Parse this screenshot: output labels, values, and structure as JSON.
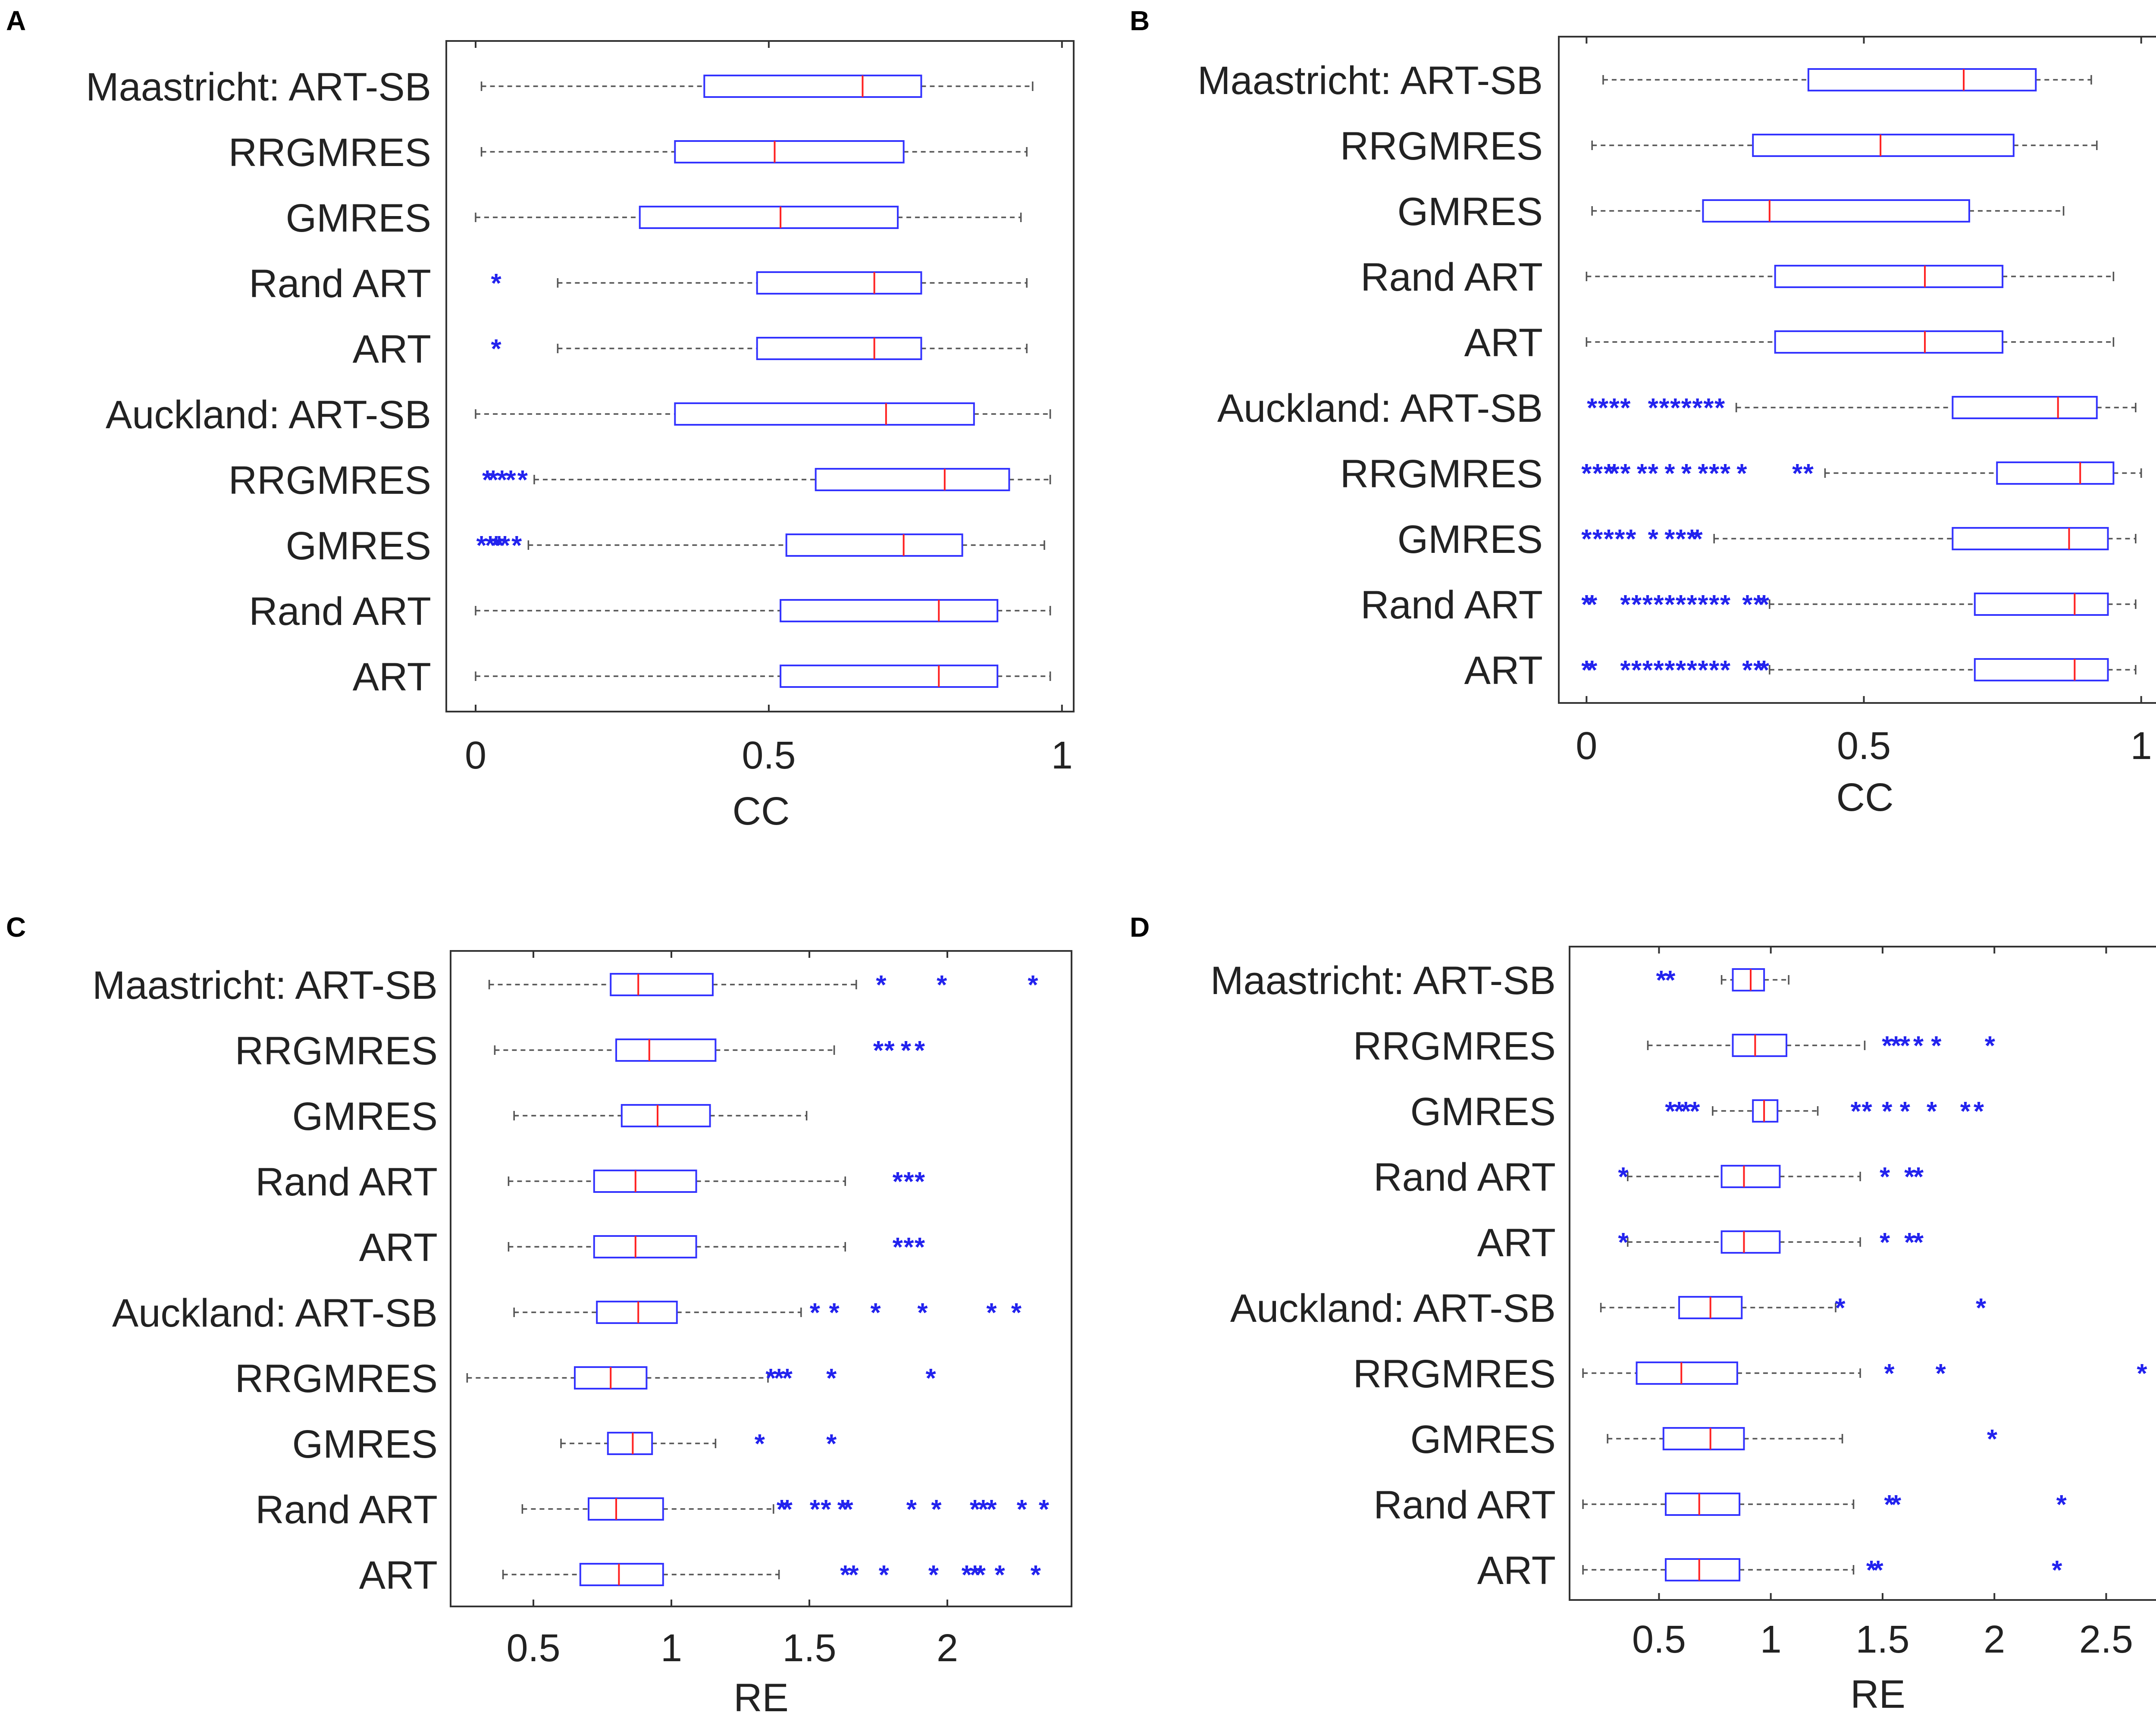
{
  "figure": {
    "panels": [
      {
        "letter": "A",
        "xlim": [
          -0.05,
          1.02
        ],
        "xticks": [
          0,
          0.5,
          1
        ],
        "tick_labels": [
          "0",
          "0.5",
          "1"
        ],
        "xlabel": "CC"
      },
      {
        "letter": "B",
        "xlim": [
          -0.05,
          1.05
        ],
        "xticks": [
          0,
          0.5,
          1
        ],
        "tick_labels": [
          "0",
          "0.5",
          "1"
        ],
        "xlabel": "CC"
      },
      {
        "letter": "C",
        "xlim": [
          0.2,
          2.45
        ],
        "xticks": [
          0.5,
          1,
          1.5,
          2
        ],
        "tick_labels": [
          "0.5",
          "1",
          "1.5",
          "2"
        ],
        "xlabel": "RE"
      },
      {
        "letter": "D",
        "xlim": [
          0.1,
          2.8
        ],
        "xticks": [
          0.5,
          1,
          1.5,
          2,
          2.5
        ],
        "tick_labels": [
          "0.5",
          "1",
          "1.5",
          "2",
          "2.5"
        ],
        "xlabel": "RE"
      }
    ]
  },
  "chart_data": [
    {
      "type": "boxplot",
      "panel": "A",
      "orientation": "horizontal",
      "title": "",
      "xlabel": "CC",
      "ylabel": "",
      "xlim": [
        -0.05,
        1.02
      ],
      "categories": [
        "Maastricht: ART-SB",
        "RRGMRES",
        "GMRES",
        "Rand ART",
        "ART",
        "Auckland: ART-SB",
        "RRGMRES",
        "GMRES",
        "Rand ART",
        "ART"
      ],
      "series": [
        {
          "name": "Maastricht: ART-SB",
          "whisker_low": 0.01,
          "q1": 0.39,
          "median": 0.66,
          "q3": 0.76,
          "whisker_high": 0.95,
          "outliers": []
        },
        {
          "name": "RRGMRES",
          "whisker_low": 0.01,
          "q1": 0.34,
          "median": 0.51,
          "q3": 0.73,
          "whisker_high": 0.94,
          "outliers": []
        },
        {
          "name": "GMRES",
          "whisker_low": 0.0,
          "q1": 0.28,
          "median": 0.52,
          "q3": 0.72,
          "whisker_high": 0.93,
          "outliers": []
        },
        {
          "name": "Rand ART",
          "whisker_low": 0.14,
          "q1": 0.48,
          "median": 0.68,
          "q3": 0.76,
          "whisker_high": 0.94,
          "outliers": [
            0.035
          ]
        },
        {
          "name": "ART",
          "whisker_low": 0.14,
          "q1": 0.48,
          "median": 0.68,
          "q3": 0.76,
          "whisker_high": 0.94,
          "outliers": [
            0.035
          ]
        },
        {
          "name": "Auckland: ART-SB",
          "whisker_low": 0.0,
          "q1": 0.34,
          "median": 0.7,
          "q3": 0.85,
          "whisker_high": 0.98,
          "outliers": []
        },
        {
          "name": "RRGMRES",
          "whisker_low": 0.1,
          "q1": 0.58,
          "median": 0.8,
          "q3": 0.91,
          "whisker_high": 0.98,
          "outliers": [
            0.02,
            0.03,
            0.045,
            0.06,
            0.08
          ]
        },
        {
          "name": "GMRES",
          "whisker_low": 0.09,
          "q1": 0.53,
          "median": 0.73,
          "q3": 0.83,
          "whisker_high": 0.97,
          "outliers": [
            0.01,
            0.025,
            0.035,
            0.04,
            0.05,
            0.07
          ]
        },
        {
          "name": "Rand ART",
          "whisker_low": 0.0,
          "q1": 0.52,
          "median": 0.79,
          "q3": 0.89,
          "whisker_high": 0.98,
          "outliers": []
        },
        {
          "name": "ART",
          "whisker_low": 0.0,
          "q1": 0.52,
          "median": 0.79,
          "q3": 0.89,
          "whisker_high": 0.98,
          "outliers": []
        }
      ]
    },
    {
      "type": "boxplot",
      "panel": "B",
      "orientation": "horizontal",
      "title": "",
      "xlabel": "CC",
      "ylabel": "",
      "xlim": [
        -0.05,
        1.05
      ],
      "categories": [
        "Maastricht: ART-SB",
        "RRGMRES",
        "GMRES",
        "Rand ART",
        "ART",
        "Auckland: ART-SB",
        "RRGMRES",
        "GMRES",
        "Rand ART",
        "ART"
      ],
      "series": [
        {
          "name": "Maastricht: ART-SB",
          "whisker_low": 0.03,
          "q1": 0.4,
          "median": 0.68,
          "q3": 0.81,
          "whisker_high": 0.91,
          "outliers": []
        },
        {
          "name": "RRGMRES",
          "whisker_low": 0.01,
          "q1": 0.3,
          "median": 0.53,
          "q3": 0.77,
          "whisker_high": 0.92,
          "outliers": []
        },
        {
          "name": "GMRES",
          "whisker_low": 0.01,
          "q1": 0.21,
          "median": 0.33,
          "q3": 0.69,
          "whisker_high": 0.86,
          "outliers": []
        },
        {
          "name": "Rand ART",
          "whisker_low": 0.0,
          "q1": 0.34,
          "median": 0.61,
          "q3": 0.75,
          "whisker_high": 0.95,
          "outliers": []
        },
        {
          "name": "ART",
          "whisker_low": 0.0,
          "q1": 0.34,
          "median": 0.61,
          "q3": 0.75,
          "whisker_high": 0.95,
          "outliers": []
        },
        {
          "name": "Auckland: ART-SB",
          "whisker_low": 0.27,
          "q1": 0.66,
          "median": 0.85,
          "q3": 0.92,
          "whisker_high": 0.99,
          "outliers": [
            0.01,
            0.03,
            0.05,
            0.07,
            0.12,
            0.14,
            0.16,
            0.18,
            0.2,
            0.22,
            0.24
          ]
        },
        {
          "name": "RRGMRES",
          "whisker_low": 0.43,
          "q1": 0.74,
          "median": 0.89,
          "q3": 0.95,
          "whisker_high": 1.0,
          "outliers": [
            0.0,
            0.02,
            0.04,
            0.05,
            0.07,
            0.1,
            0.12,
            0.15,
            0.18,
            0.21,
            0.23,
            0.25,
            0.28,
            0.38,
            0.4
          ]
        },
        {
          "name": "GMRES",
          "whisker_low": 0.23,
          "q1": 0.66,
          "median": 0.87,
          "q3": 0.94,
          "whisker_high": 0.99,
          "outliers": [
            0.0,
            0.02,
            0.04,
            0.06,
            0.08,
            0.12,
            0.15,
            0.17,
            0.19,
            0.2
          ]
        },
        {
          "name": "Rand ART",
          "whisker_low": 0.33,
          "q1": 0.7,
          "median": 0.88,
          "q3": 0.94,
          "whisker_high": 0.99,
          "outliers": [
            0.0,
            0.01,
            0.07,
            0.09,
            0.11,
            0.13,
            0.15,
            0.17,
            0.19,
            0.21,
            0.23,
            0.25,
            0.29,
            0.31,
            0.32
          ]
        },
        {
          "name": "ART",
          "whisker_low": 0.33,
          "q1": 0.7,
          "median": 0.88,
          "q3": 0.94,
          "whisker_high": 0.99,
          "outliers": [
            0.0,
            0.01,
            0.07,
            0.09,
            0.11,
            0.13,
            0.15,
            0.17,
            0.19,
            0.21,
            0.23,
            0.25,
            0.29,
            0.31,
            0.32
          ]
        }
      ]
    },
    {
      "type": "boxplot",
      "panel": "C",
      "orientation": "horizontal",
      "title": "",
      "xlabel": "RE",
      "ylabel": "",
      "xlim": [
        0.2,
        2.45
      ],
      "categories": [
        "Maastricht: ART-SB",
        "RRGMRES",
        "GMRES",
        "Rand ART",
        "ART",
        "Auckland: ART-SB",
        "RRGMRES",
        "GMRES",
        "Rand ART",
        "ART"
      ],
      "series": [
        {
          "name": "Maastricht: ART-SB",
          "whisker_low": 0.34,
          "q1": 0.78,
          "median": 0.88,
          "q3": 1.15,
          "whisker_high": 1.67,
          "outliers": [
            1.76,
            1.98,
            2.31
          ]
        },
        {
          "name": "RRGMRES",
          "whisker_low": 0.36,
          "q1": 0.8,
          "median": 0.92,
          "q3": 1.16,
          "whisker_high": 1.59,
          "outliers": [
            1.75,
            1.79,
            1.85,
            1.9
          ]
        },
        {
          "name": "GMRES",
          "whisker_low": 0.43,
          "q1": 0.82,
          "median": 0.95,
          "q3": 1.14,
          "whisker_high": 1.49,
          "outliers": []
        },
        {
          "name": "Rand ART",
          "whisker_low": 0.41,
          "q1": 0.72,
          "median": 0.87,
          "q3": 1.09,
          "whisker_high": 1.63,
          "outliers": [
            1.82,
            1.86,
            1.9
          ]
        },
        {
          "name": "ART",
          "whisker_low": 0.41,
          "q1": 0.72,
          "median": 0.87,
          "q3": 1.09,
          "whisker_high": 1.63,
          "outliers": [
            1.82,
            1.86,
            1.9
          ]
        },
        {
          "name": "Auckland: ART-SB",
          "whisker_low": 0.43,
          "q1": 0.73,
          "median": 0.88,
          "q3": 1.02,
          "whisker_high": 1.47,
          "outliers": [
            1.52,
            1.59,
            1.74,
            1.91,
            2.16,
            2.25
          ]
        },
        {
          "name": "RRGMRES",
          "whisker_low": 0.26,
          "q1": 0.65,
          "median": 0.78,
          "q3": 0.91,
          "whisker_high": 1.35,
          "outliers": [
            1.36,
            1.39,
            1.42,
            1.58,
            1.94
          ]
        },
        {
          "name": "GMRES",
          "whisker_low": 0.6,
          "q1": 0.77,
          "median": 0.86,
          "q3": 0.93,
          "whisker_high": 1.16,
          "outliers": [
            1.32,
            1.58
          ]
        },
        {
          "name": "Rand ART",
          "whisker_low": 0.46,
          "q1": 0.7,
          "median": 0.8,
          "q3": 0.97,
          "whisker_high": 1.37,
          "outliers": [
            1.4,
            1.42,
            1.52,
            1.56,
            1.62,
            1.64,
            1.87,
            1.96,
            2.1,
            2.13,
            2.16,
            2.27,
            2.35
          ]
        },
        {
          "name": "ART",
          "whisker_low": 0.39,
          "q1": 0.67,
          "median": 0.81,
          "q3": 0.97,
          "whisker_high": 1.39,
          "outliers": [
            1.63,
            1.66,
            1.77,
            1.95,
            2.07,
            2.1,
            2.12,
            2.19,
            2.32
          ]
        }
      ]
    },
    {
      "type": "boxplot",
      "panel": "D",
      "orientation": "horizontal",
      "title": "",
      "xlabel": "RE",
      "ylabel": "",
      "xlim": [
        0.1,
        2.8
      ],
      "categories": [
        "Maastricht: ART-SB",
        "RRGMRES",
        "GMRES",
        "Rand ART",
        "ART",
        "Auckland: ART-SB",
        "RRGMRES",
        "GMRES",
        "Rand ART",
        "ART"
      ],
      "series": [
        {
          "name": "Maastricht: ART-SB",
          "whisker_low": 0.78,
          "q1": 0.83,
          "median": 0.91,
          "q3": 0.97,
          "whisker_high": 1.08,
          "outliers": [
            0.51,
            0.55
          ]
        },
        {
          "name": "RRGMRES",
          "whisker_low": 0.45,
          "q1": 0.83,
          "median": 0.93,
          "q3": 1.07,
          "whisker_high": 1.42,
          "outliers": [
            1.52,
            1.56,
            1.6,
            1.66,
            1.74,
            1.98
          ]
        },
        {
          "name": "GMRES",
          "whisker_low": 0.74,
          "q1": 0.92,
          "median": 0.97,
          "q3": 1.03,
          "whisker_high": 1.21,
          "outliers": [
            0.55,
            0.59,
            0.62,
            0.66,
            1.38,
            1.43,
            1.52,
            1.6,
            1.72,
            1.87,
            1.93
          ]
        },
        {
          "name": "Rand ART",
          "whisker_low": 0.36,
          "q1": 0.78,
          "median": 0.88,
          "q3": 1.04,
          "whisker_high": 1.4,
          "outliers": [
            0.34,
            1.51,
            1.62,
            1.66
          ]
        },
        {
          "name": "ART",
          "whisker_low": 0.36,
          "q1": 0.78,
          "median": 0.88,
          "q3": 1.04,
          "whisker_high": 1.4,
          "outliers": [
            0.34,
            1.51,
            1.62,
            1.66
          ]
        },
        {
          "name": "Auckland: ART-SB",
          "whisker_low": 0.24,
          "q1": 0.59,
          "median": 0.73,
          "q3": 0.87,
          "whisker_high": 1.29,
          "outliers": [
            1.31,
            1.94
          ]
        },
        {
          "name": "RRGMRES",
          "whisker_low": 0.16,
          "q1": 0.4,
          "median": 0.6,
          "q3": 0.85,
          "whisker_high": 1.4,
          "outliers": [
            1.53,
            1.76,
            2.66
          ]
        },
        {
          "name": "GMRES",
          "whisker_low": 0.27,
          "q1": 0.52,
          "median": 0.73,
          "q3": 0.88,
          "whisker_high": 1.32,
          "outliers": [
            1.99
          ]
        },
        {
          "name": "Rand ART",
          "whisker_low": 0.16,
          "q1": 0.53,
          "median": 0.68,
          "q3": 0.86,
          "whisker_high": 1.37,
          "outliers": [
            1.53,
            1.56,
            2.3
          ]
        },
        {
          "name": "ART",
          "whisker_low": 0.16,
          "q1": 0.53,
          "median": 0.68,
          "q3": 0.86,
          "whisker_high": 1.37,
          "outliers": [
            1.45,
            1.48,
            2.28
          ]
        }
      ]
    }
  ]
}
